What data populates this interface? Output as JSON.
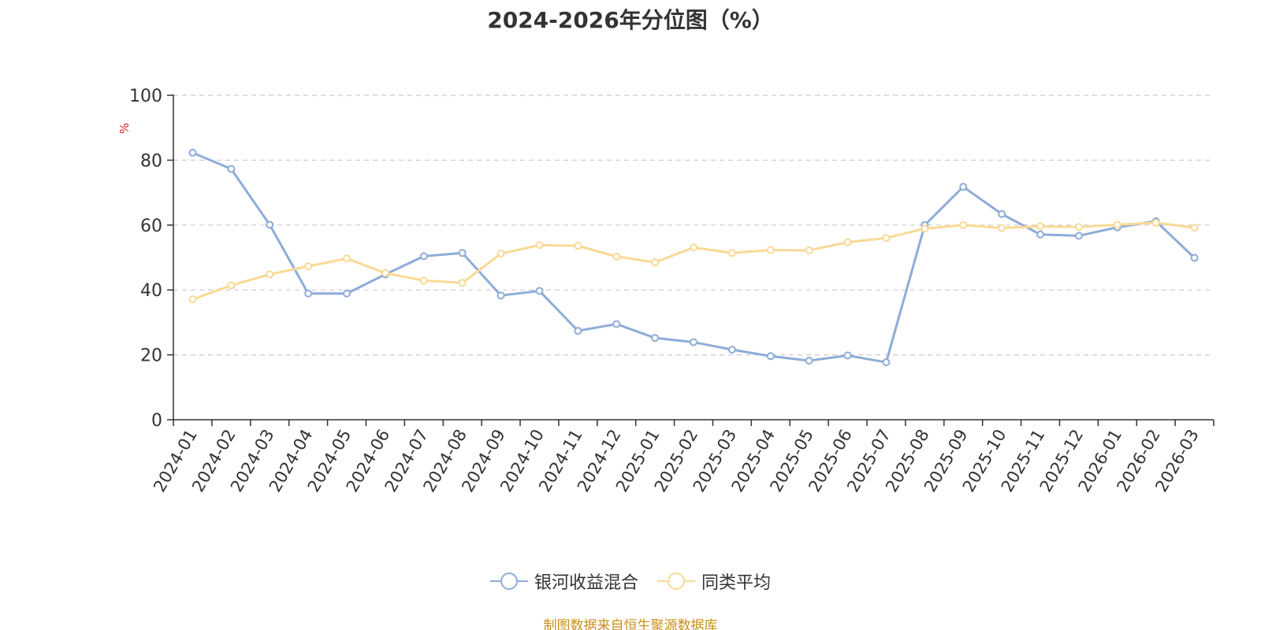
{
  "chart_data": {
    "type": "line",
    "title": "2024-2026年分位图（%）",
    "xlabel": "",
    "ylabel": "%",
    "ylim": [
      0,
      100
    ],
    "yticks": [
      0,
      20,
      40,
      60,
      80,
      100
    ],
    "grid": true,
    "legend_position": "bottom",
    "categories": [
      "2024-01",
      "2024-02",
      "2024-03",
      "2024-04",
      "2024-05",
      "2024-06",
      "2024-07",
      "2024-08",
      "2024-09",
      "2024-10",
      "2024-11",
      "2024-12",
      "2025-01",
      "2025-02",
      "2025-03",
      "2025-04",
      "2025-05",
      "2025-06",
      "2025-07",
      "2025-08",
      "2025-09",
      "2025-10",
      "2025-11",
      "2025-12",
      "2026-01",
      "2026-02",
      "2026-03"
    ],
    "series": [
      {
        "name": "银河收益混合",
        "color": "#8eacd8",
        "values": [
          82.3,
          77.3,
          60.1,
          38.9,
          38.9,
          44.8,
          50.4,
          51.4,
          38.3,
          39.7,
          27.4,
          29.5,
          25.2,
          23.9,
          21.6,
          19.6,
          18.2,
          19.8,
          17.7,
          60.0,
          71.8,
          63.4,
          57.1,
          56.7,
          59.3,
          61.2,
          49.9
        ]
      },
      {
        "name": "同类平均",
        "color": "#f9d996",
        "values": [
          37.1,
          41.4,
          44.8,
          47.3,
          49.7,
          45.2,
          42.9,
          42.2,
          51.2,
          53.8,
          53.6,
          50.3,
          48.5,
          53.1,
          51.4,
          52.3,
          52.2,
          54.7,
          56.0,
          58.9,
          60.0,
          59.1,
          59.6,
          59.4,
          60.1,
          60.7,
          59.2
        ]
      }
    ]
  },
  "source_note": "制图数据来自恒生聚源数据库"
}
